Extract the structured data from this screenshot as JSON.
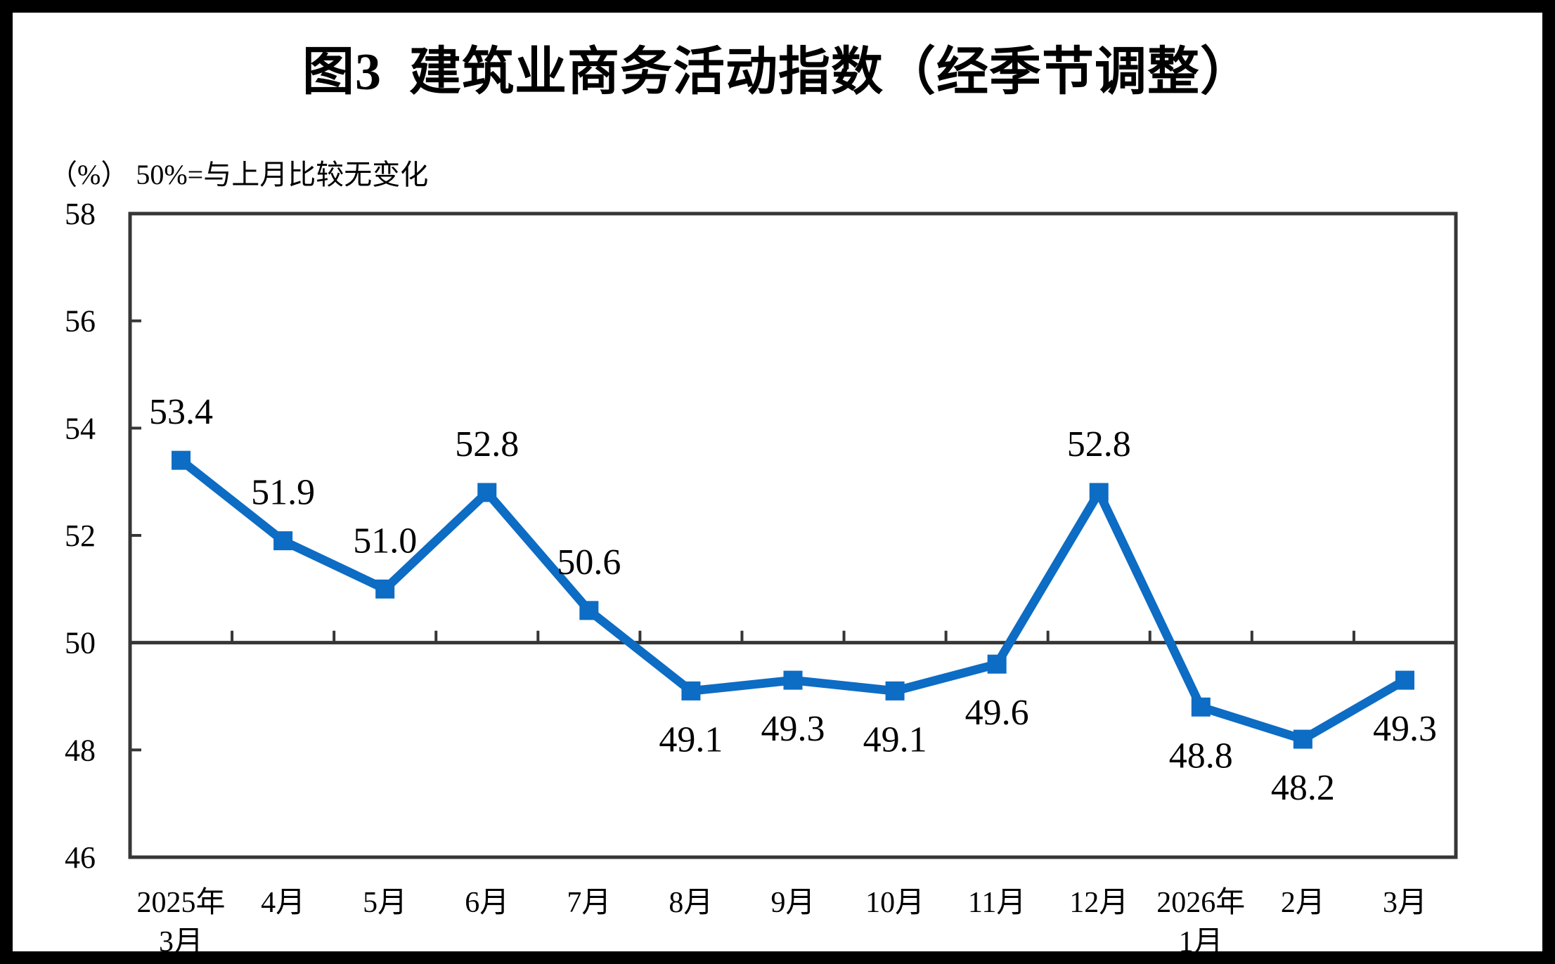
{
  "title": "图3  建筑业商务活动指数（经季节调整）",
  "unit_note": "（%） 50%=与上月比较无变化",
  "chart_data": {
    "type": "line",
    "title": "图3 建筑业商务活动指数（经季节调整）",
    "unit_note": "（%）50%=与上月比较无变化",
    "categories": [
      "2025年3月",
      "4月",
      "5月",
      "6月",
      "7月",
      "8月",
      "9月",
      "10月",
      "11月",
      "12月",
      "2026年1月",
      "2月",
      "3月"
    ],
    "category_label_lines": [
      [
        "2025年",
        "3月"
      ],
      [
        "4月"
      ],
      [
        "5月"
      ],
      [
        "6月"
      ],
      [
        "7月"
      ],
      [
        "8月"
      ],
      [
        "9月"
      ],
      [
        "10月"
      ],
      [
        "11月"
      ],
      [
        "12月"
      ],
      [
        "2026年",
        "1月"
      ],
      [
        "2月"
      ],
      [
        "3月"
      ]
    ],
    "values": [
      53.4,
      51.9,
      51.0,
      52.8,
      50.6,
      49.1,
      49.3,
      49.1,
      49.6,
      52.8,
      48.8,
      48.2,
      49.3
    ],
    "data_labels": [
      "53.4",
      "51.9",
      "51.0",
      "52.8",
      "50.6",
      "49.1",
      "49.3",
      "49.1",
      "49.6",
      "52.8",
      "48.8",
      "48.2",
      "49.3"
    ],
    "ylim": [
      46,
      58
    ],
    "yticks": [
      46,
      48,
      50,
      52,
      54,
      56,
      58
    ],
    "reference_y": 50,
    "grid": "none",
    "legend": "none",
    "marker": "square",
    "line_color": "#0d6cc4",
    "axis_color": "#363636",
    "text_color": "#000000"
  }
}
